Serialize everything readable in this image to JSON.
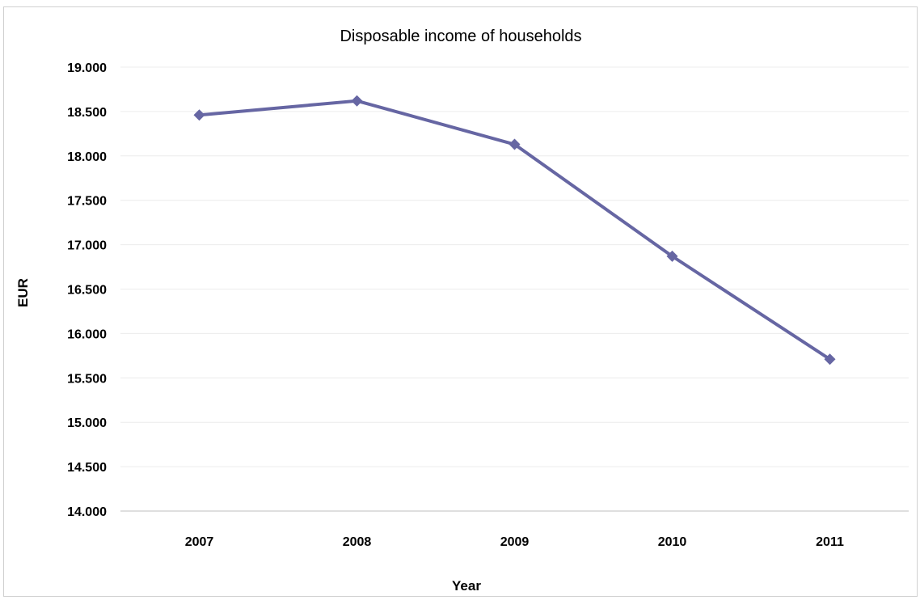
{
  "chart_data": {
    "type": "line",
    "title": "Disposable income of households",
    "xlabel": "Year",
    "ylabel": "EUR",
    "categories": [
      "2007",
      "2008",
      "2009",
      "2010",
      "2011"
    ],
    "series": [
      {
        "values": [
          18460,
          18620,
          18130,
          16870,
          15710
        ]
      }
    ],
    "ylim": [
      14000,
      19000
    ],
    "y_ticks": [
      14000,
      14500,
      15000,
      15500,
      16000,
      16500,
      17000,
      17500,
      18000,
      18500,
      19000
    ],
    "y_tick_labels": [
      "14.000",
      "14.500",
      "15.000",
      "15.500",
      "16.000",
      "16.500",
      "17.000",
      "17.500",
      "18.000",
      "18.500",
      "19.000"
    ],
    "grid": true,
    "legend": "none",
    "colors": {
      "line": "#6666a3",
      "grid": "#ececec",
      "axis": "#bfbfbf"
    }
  }
}
